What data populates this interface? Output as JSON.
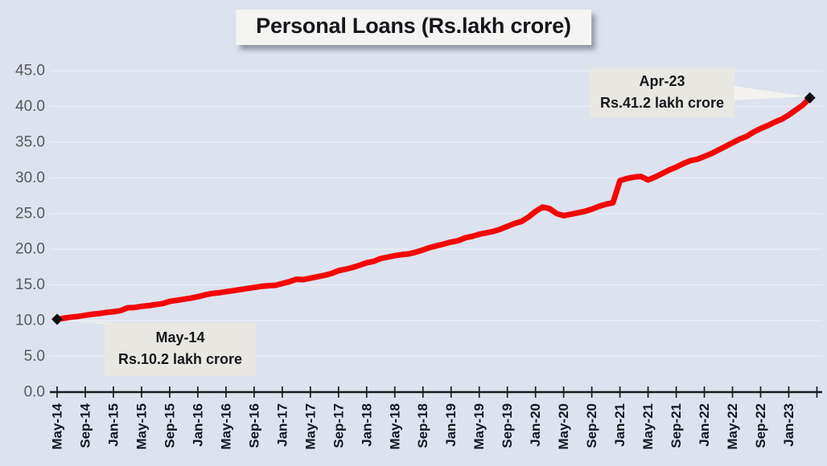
{
  "chart_data": {
    "type": "line",
    "title": "Personal Loans (Rs.lakh crore)",
    "xlabel": "",
    "ylabel": "",
    "x_frequency": "monthly",
    "x_start": "May-14",
    "x_end": "Apr-23",
    "x_tick_labels": [
      "May-14",
      "Sep-14",
      "Jan-15",
      "May-15",
      "Sep-15",
      "Jan-16",
      "May-16",
      "Sep-16",
      "Jan-17",
      "May-17",
      "Sep-17",
      "Jan-18",
      "May-18",
      "Sep-18",
      "Jan-19",
      "May-19",
      "Sep-19",
      "Jan-20",
      "May-20",
      "Sep-20",
      "Jan-21",
      "May-21",
      "Sep-21",
      "Jan-22",
      "May-22",
      "Sep-22",
      "Jan-23"
    ],
    "ylim": [
      0,
      45
    ],
    "y_ticks": [
      0,
      5,
      10,
      15,
      20,
      25,
      30,
      35,
      40,
      45
    ],
    "y_tick_labels": [
      "0.0",
      "5.0",
      "10.0",
      "15.0",
      "20.0",
      "25.0",
      "30.0",
      "35.0",
      "40.0",
      "45.0"
    ],
    "grid": "horizontal",
    "legend": "none",
    "series": [
      {
        "name": "Personal Loans (Rs.lakh crore)",
        "values": [
          10.2,
          10.35,
          10.5,
          10.6,
          10.75,
          10.9,
          11.0,
          11.15,
          11.25,
          11.4,
          11.8,
          11.85,
          12.0,
          12.1,
          12.25,
          12.4,
          12.7,
          12.85,
          13.0,
          13.15,
          13.35,
          13.6,
          13.8,
          13.9,
          14.05,
          14.2,
          14.35,
          14.5,
          14.65,
          14.8,
          14.9,
          14.95,
          15.2,
          15.45,
          15.8,
          15.75,
          15.95,
          16.15,
          16.35,
          16.6,
          17.0,
          17.2,
          17.45,
          17.75,
          18.1,
          18.3,
          18.7,
          18.9,
          19.1,
          19.25,
          19.35,
          19.6,
          19.9,
          20.25,
          20.5,
          20.75,
          21.0,
          21.2,
          21.6,
          21.8,
          22.1,
          22.3,
          22.5,
          22.8,
          23.2,
          23.6,
          23.9,
          24.5,
          25.3,
          25.9,
          25.7,
          25.0,
          24.7,
          24.9,
          25.1,
          25.3,
          25.6,
          26.0,
          26.3,
          26.5,
          29.6,
          29.9,
          30.1,
          30.2,
          29.7,
          30.1,
          30.6,
          31.1,
          31.5,
          32.0,
          32.4,
          32.6,
          33.0,
          33.4,
          33.9,
          34.4,
          34.9,
          35.4,
          35.8,
          36.4,
          36.9,
          37.3,
          37.8,
          38.2,
          38.8,
          39.5,
          40.2,
          41.2
        ]
      }
    ],
    "annotations": [
      {
        "label": "May-14",
        "value_label": "Rs.10.2 lakh crore",
        "point": "May-14",
        "value": 10.2
      },
      {
        "label": "Apr-23",
        "value_label": "Rs.41.2 lakh crore",
        "point": "Apr-23",
        "value": 41.2
      }
    ]
  },
  "colors": {
    "background": "#dce2ee",
    "line": "#f40505",
    "marker": "#0d0d0f",
    "axis": "#1a1a1c",
    "gridline": "#e9edf6",
    "y_label": "#595959",
    "x_label": "#14161d",
    "title_bg": "#f4f4f2",
    "callout_bg": "#e9e7e2",
    "callout_tail": "#efede9",
    "callout_tail_light": "#f3f2ee"
  }
}
